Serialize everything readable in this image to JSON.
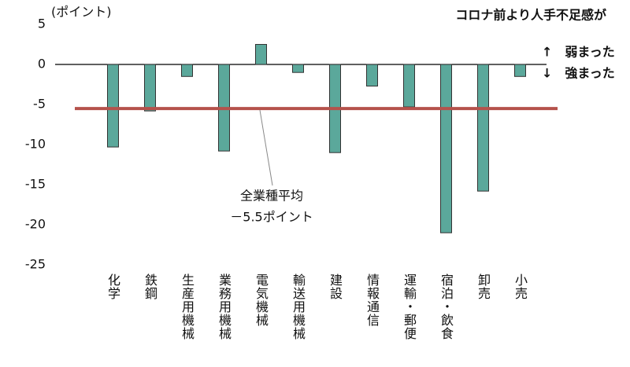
{
  "chart_data": {
    "type": "bar",
    "y_label": "(ポイント)",
    "annotation_title": "コロナ前より人手不足感が",
    "direction_labels": [
      "↑　弱まった",
      "↓　強まった"
    ],
    "categories": [
      "化学",
      "鉄鋼",
      "生産用機械",
      "業務用機械",
      "電気機械",
      "輸送用機械",
      "建設",
      "情報通信",
      "運輸・郵便",
      "宿泊・飲食",
      "卸売",
      "小売"
    ],
    "values": [
      -10.3,
      -5.8,
      -1.5,
      -10.8,
      2.5,
      -1.0,
      -11.0,
      -2.7,
      -5.3,
      -21.0,
      -15.8,
      -1.5
    ],
    "color": "#5ba89b",
    "ylim": [
      -25,
      5
    ],
    "yticks": [
      5,
      0,
      -5,
      -10,
      -15,
      -20,
      -25
    ],
    "grid": false,
    "reference_line": {
      "value": -5.5,
      "label": [
        "全業種平均",
        "－5.5ポイント"
      ],
      "color": "#b5524b"
    }
  }
}
